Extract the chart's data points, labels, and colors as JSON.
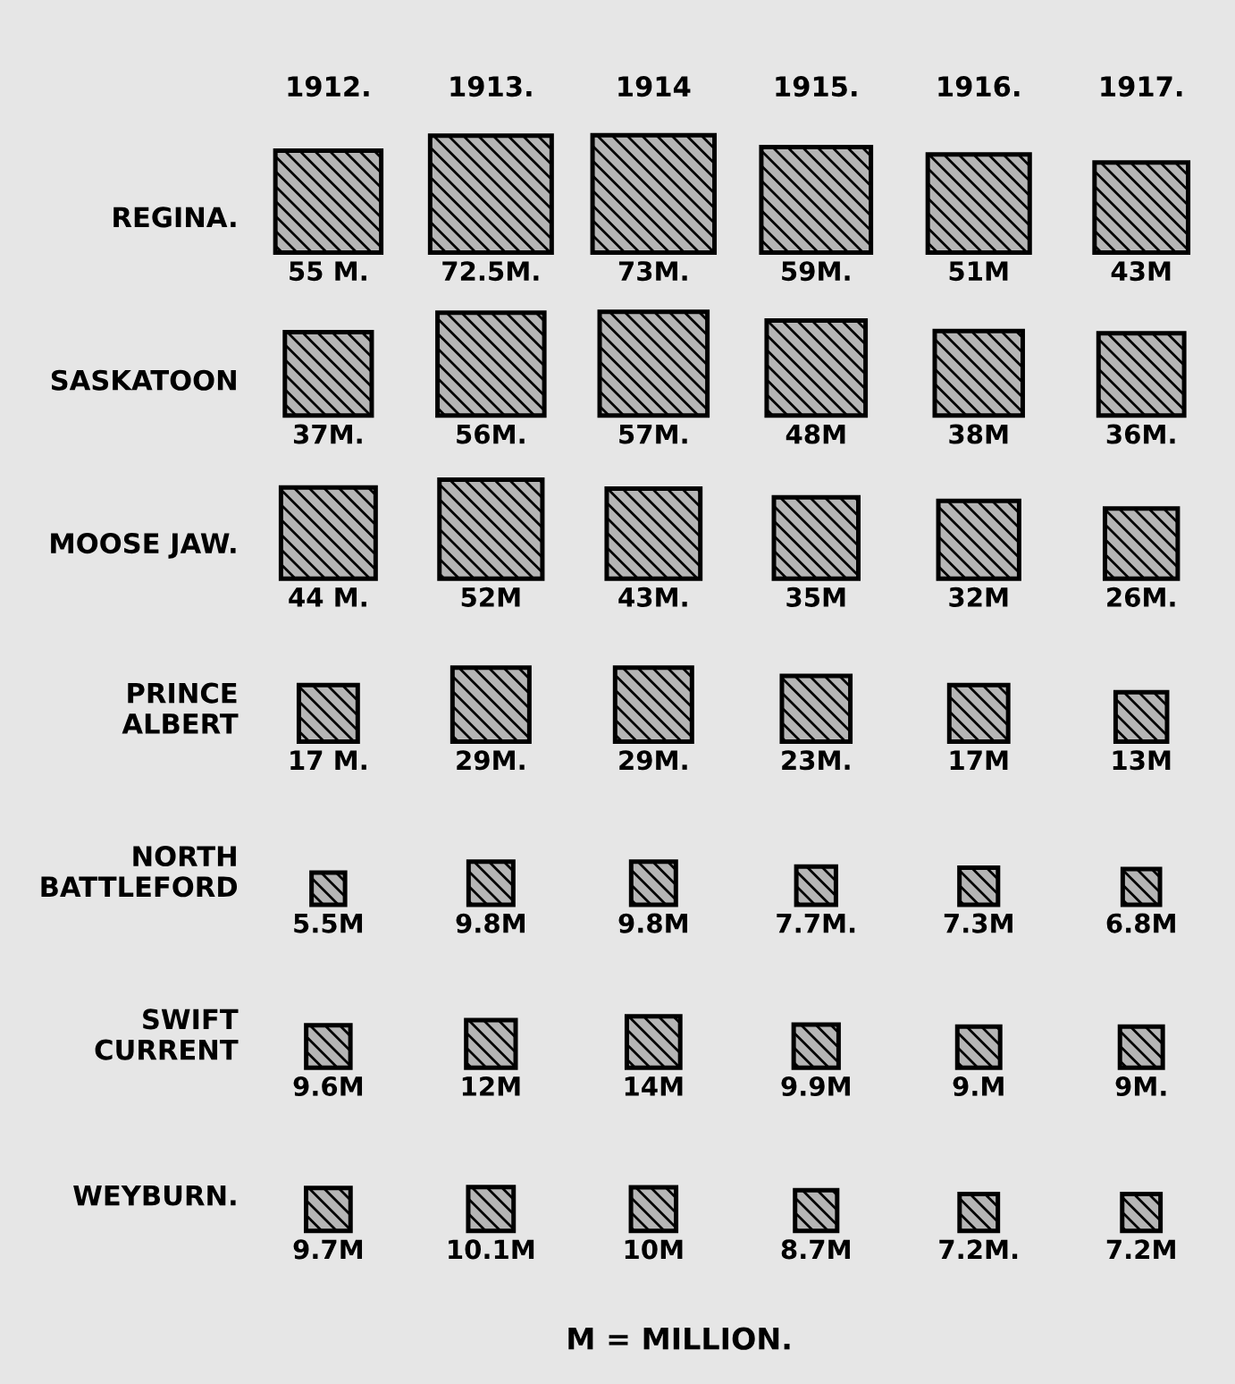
{
  "chart_data": {
    "type": "heatmap",
    "categories": [
      "1912.",
      "1913.",
      "1914",
      "1915.",
      "1916.",
      "1917."
    ],
    "y_categories": [
      "REGINA.",
      "SASKATOON",
      "MOOSE JAW.",
      "PRINCE\nALBERT",
      "NORTH\nBATTLEFORD",
      "SWIFT\nCURRENT",
      "WEYBURN."
    ],
    "cells": [
      [
        55,
        72.5,
        73,
        59,
        51,
        43
      ],
      [
        37,
        56,
        57,
        48,
        38,
        36
      ],
      [
        44,
        52,
        43,
        35,
        32,
        26
      ],
      [
        17,
        29,
        29,
        23,
        17,
        13
      ],
      [
        5.5,
        9.8,
        9.8,
        7.7,
        7.3,
        6.8
      ],
      [
        9.6,
        12,
        14,
        9.9,
        9,
        9
      ],
      [
        9.7,
        10.1,
        10,
        8.7,
        7.2,
        7.2
      ]
    ],
    "cell_labels": [
      [
        "55 M.",
        "72.5M.",
        "73M.",
        "59M.",
        "51M",
        "43M"
      ],
      [
        "37M.",
        "56M.",
        "57M.",
        "48M",
        "38M",
        "36M."
      ],
      [
        "44 M.",
        "52M",
        "43M.",
        "35M",
        "32M",
        "26M."
      ],
      [
        "17 M.",
        "29M.",
        "29M.",
        "23M.",
        "17M",
        "13M"
      ],
      [
        "5.5M",
        "9.8M",
        "9.8M",
        "7.7M.",
        "7.3M",
        "6.8M"
      ],
      [
        "9.6M",
        "12M",
        "14M",
        "9.9M",
        "9.M",
        "9M."
      ],
      [
        "9.7M",
        "10.1M",
        "10M",
        "8.7M",
        "7.2M.",
        "7.2M"
      ]
    ],
    "color": "#b5b5b5",
    "annotations": [
      "M = MILLION."
    ]
  }
}
